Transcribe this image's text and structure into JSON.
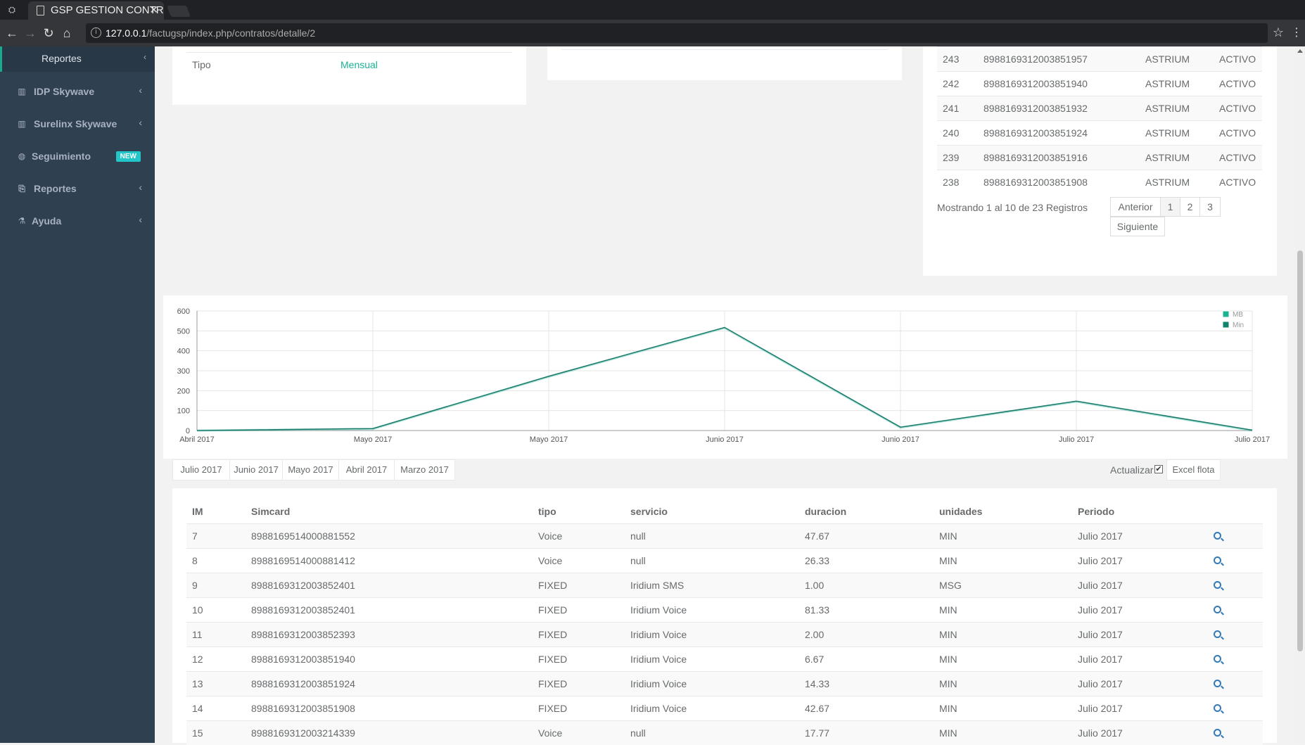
{
  "browser": {
    "tab_title": "GSP GESTION CONTR",
    "tab_close": "✕",
    "url_host": "127.0.0.1",
    "url_path": "/factugsp/index.php/contratos/detalle/2"
  },
  "sidebar": {
    "active_item": "Reportes",
    "items": [
      {
        "label": "IDP Skywave",
        "icon": "bar-chart-icon"
      },
      {
        "label": "Surelinx Skywave",
        "icon": "bar-chart-icon"
      },
      {
        "label": "Seguimiento",
        "icon": "globe-icon",
        "badge": "NEW"
      },
      {
        "label": "Reportes",
        "icon": "files-icon"
      },
      {
        "label": "Ayuda",
        "icon": "flask-icon"
      }
    ]
  },
  "contract": {
    "tipo_label": "Tipo",
    "tipo_value": "Mensual"
  },
  "simcards": [
    {
      "id": "243",
      "sim": "8988169312003851957",
      "provider": "ASTRIUM",
      "status": "ACTIVO"
    },
    {
      "id": "242",
      "sim": "8988169312003851940",
      "provider": "ASTRIUM",
      "status": "ACTIVO"
    },
    {
      "id": "241",
      "sim": "8988169312003851932",
      "provider": "ASTRIUM",
      "status": "ACTIVO"
    },
    {
      "id": "240",
      "sim": "8988169312003851924",
      "provider": "ASTRIUM",
      "status": "ACTIVO"
    },
    {
      "id": "239",
      "sim": "8988169312003851916",
      "provider": "ASTRIUM",
      "status": "ACTIVO"
    },
    {
      "id": "238",
      "sim": "8988169312003851908",
      "provider": "ASTRIUM",
      "status": "ACTIVO"
    }
  ],
  "pagination": {
    "info": "Mostrando 1 al 10 de 23 Registros",
    "prev": "Anterior",
    "pages": [
      "1",
      "2",
      "3"
    ],
    "next": "Siguiente"
  },
  "chart_data": {
    "type": "line",
    "x": [
      "Abril 2017",
      "Mayo 2017",
      "Mayo 2017",
      "Junio 2017",
      "Junio 2017",
      "Julio 2017",
      "Julio 2017"
    ],
    "series": [
      {
        "name": "MB",
        "values": [
          0,
          8,
          270,
          515,
          15,
          145,
          0
        ],
        "color": "#1ab394"
      },
      {
        "name": "Min",
        "values": [
          0,
          10,
          272,
          517,
          17,
          147,
          2
        ],
        "color": "#1c84c6"
      }
    ],
    "ylim": [
      0,
      600
    ],
    "yticks": [
      "0",
      "100",
      "200",
      "300",
      "400",
      "500",
      "600"
    ],
    "legend": "top-right",
    "grid": true
  },
  "month_tabs": [
    "Julio 2017",
    "Junio 2017",
    "Mayo 2017",
    "Abril 2017",
    "Marzo 2017"
  ],
  "actions": {
    "actualizar_label": "Actualizar",
    "checkbox_mark": "✔",
    "excel_label": "Excel flota"
  },
  "usage_table": {
    "headers": [
      "IM",
      "Simcard",
      "tipo",
      "servicio",
      "duracion",
      "unidades",
      "Periodo"
    ],
    "rows": [
      [
        "7",
        "8988169514000881552",
        "Voice",
        "null",
        "47.67",
        "MIN",
        "Julio 2017"
      ],
      [
        "8",
        "8988169514000881412",
        "Voice",
        "null",
        "26.33",
        "MIN",
        "Julio 2017"
      ],
      [
        "9",
        "8988169312003852401",
        "FIXED",
        "Iridium SMS",
        "1.00",
        "MSG",
        "Julio 2017"
      ],
      [
        "10",
        "8988169312003852401",
        "FIXED",
        "Iridium Voice",
        "81.33",
        "MIN",
        "Julio 2017"
      ],
      [
        "11",
        "8988169312003852393",
        "FIXED",
        "Iridium Voice",
        "2.00",
        "MIN",
        "Julio 2017"
      ],
      [
        "12",
        "8988169312003851940",
        "FIXED",
        "Iridium Voice",
        "6.67",
        "MIN",
        "Julio 2017"
      ],
      [
        "13",
        "8988169312003851924",
        "FIXED",
        "Iridium Voice",
        "14.33",
        "MIN",
        "Julio 2017"
      ],
      [
        "14",
        "8988169312003851908",
        "FIXED",
        "Iridium Voice",
        "42.67",
        "MIN",
        "Julio 2017"
      ],
      [
        "15",
        "8988169312003214339",
        "Voice",
        "null",
        "17.77",
        "MIN",
        "Julio 2017"
      ]
    ]
  }
}
